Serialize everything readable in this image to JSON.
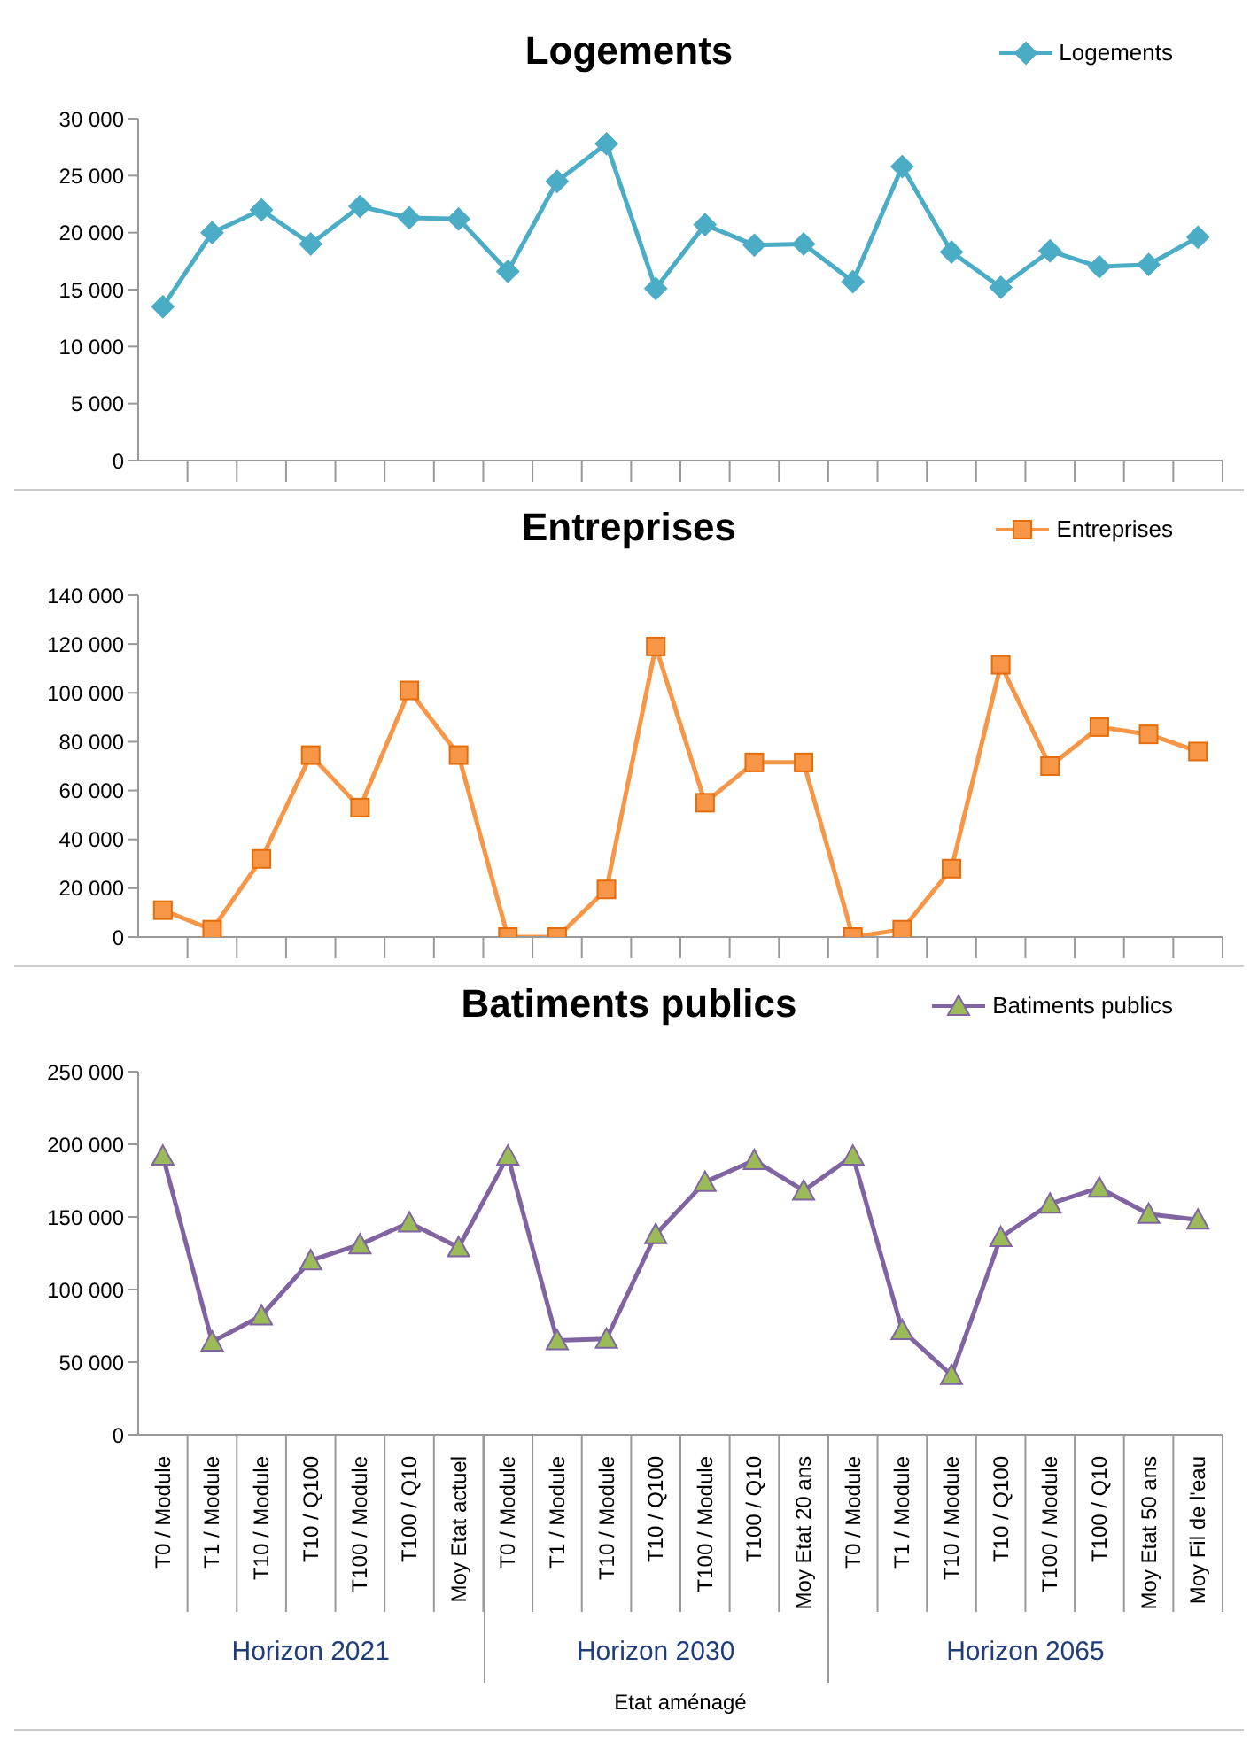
{
  "chart_data": [
    {
      "type": "line",
      "title": "Logements",
      "categories": [
        null,
        null,
        null,
        null,
        null,
        null,
        null,
        null,
        null,
        null,
        null,
        null,
        null,
        null,
        null,
        null,
        null,
        null,
        null,
        null,
        null,
        null
      ],
      "series": [
        {
          "name": "Logements",
          "color": "#4bacc6",
          "values": [
            13500,
            20000,
            22000,
            19000,
            22300,
            21300,
            21200,
            16600,
            24500,
            27800,
            15100,
            20700,
            18900,
            19000,
            15700,
            25800,
            18300,
            15200,
            18400,
            17000,
            17200,
            19600
          ]
        }
      ],
      "ylim": [
        0,
        30000
      ],
      "yticks": [
        {
          "value": 0,
          "label": "0"
        },
        {
          "value": 5000,
          "label": "5 000"
        },
        {
          "value": 10000,
          "label": "10 000"
        },
        {
          "value": 15000,
          "label": "15 000"
        },
        {
          "value": 20000,
          "label": "20 000"
        },
        {
          "value": 25000,
          "label": "25 000"
        },
        {
          "value": 30000,
          "label": "30 000"
        }
      ],
      "tick_labels": "y",
      "legend": "top right",
      "marker": "diamond",
      "grid": false
    },
    {
      "type": "line",
      "title": "Entreprises",
      "categories": [
        null,
        null,
        null,
        null,
        null,
        null,
        null,
        null,
        null,
        null,
        null,
        null,
        null,
        null,
        null,
        null,
        null,
        null,
        null,
        null,
        null,
        null
      ],
      "series": [
        {
          "name": "Entreprises",
          "color": "#f79646",
          "values": [
            11000,
            3000,
            32000,
            74500,
            53000,
            101000,
            74500,
            0,
            0,
            19500,
            119000,
            55000,
            71500,
            71500,
            0,
            3000,
            28000,
            111500,
            70000,
            86000,
            83000,
            76000
          ]
        }
      ],
      "ylim": [
        0,
        140000
      ],
      "yticks": [
        {
          "value": 0,
          "label": "0"
        },
        {
          "value": 20000,
          "label": "20 000"
        },
        {
          "value": 40000,
          "label": "40 000"
        },
        {
          "value": 60000,
          "label": "60 000"
        },
        {
          "value": 80000,
          "label": "80 000"
        },
        {
          "value": 100000,
          "label": "100 000"
        },
        {
          "value": 120000,
          "label": "120 000"
        },
        {
          "value": 140000,
          "label": "140 000"
        }
      ],
      "tick_labels": "y",
      "legend": "top right",
      "marker": "square",
      "grid": false
    },
    {
      "type": "line",
      "title": "Batiments publics",
      "xlabel": "Etat aménagé",
      "annotations": [
        "Horizon 2021",
        "Horizon 2030",
        "Horizon 2065"
      ],
      "categories": [
        "T0 / Module",
        "T1 / Module",
        "T10 / Module",
        "T10 / Q100",
        "T100 / Module",
        "T100 / Q10",
        "Moy Etat actuel",
        "T0 / Module",
        "T1 / Module",
        "T10 / Module",
        "T10 / Q100",
        "T100 / Module",
        "T100 / Q10",
        "Moy Etat 20 ans",
        "T0 / Module",
        "T1 / Module",
        "T10 / Module",
        "T10 / Q100",
        "T100 / Module",
        "T100 / Q10",
        "Moy Etat 50 ans",
        "Moy Fil de l'eau"
      ],
      "series": [
        {
          "name": "Batiments publics",
          "color": "#8064a2",
          "values": [
            192000,
            64000,
            82000,
            120000,
            131000,
            146000,
            129000,
            192000,
            65000,
            66000,
            138000,
            174000,
            189000,
            168000,
            192000,
            72000,
            41000,
            136000,
            159000,
            170000,
            152000,
            148000
          ]
        }
      ],
      "ylim": [
        0,
        250000
      ],
      "yticks": [
        {
          "value": 0,
          "label": "0"
        },
        {
          "value": 50000,
          "label": "50 000"
        },
        {
          "value": 100000,
          "label": "100 000"
        },
        {
          "value": 150000,
          "label": "150 000"
        },
        {
          "value": 200000,
          "label": "200 000"
        },
        {
          "value": 250000,
          "label": "250 000"
        }
      ],
      "legend": "top right",
      "marker": "triangle",
      "grid": false
    }
  ]
}
